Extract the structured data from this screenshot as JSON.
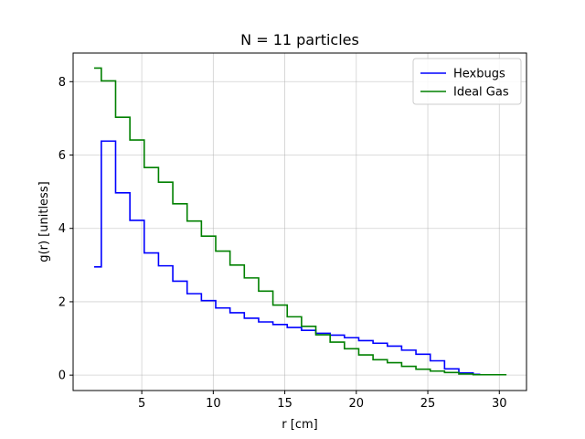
{
  "chart_data": {
    "type": "line",
    "title": "N = 11 particles",
    "xlabel": "r [cm]",
    "ylabel": "g(r) [unitless]",
    "xlim": [
      0.2,
      31.9
    ],
    "ylim": [
      -0.42,
      8.78
    ],
    "xticks": [
      5,
      10,
      15,
      20,
      25,
      30
    ],
    "yticks": [
      0,
      2,
      4,
      6,
      8
    ],
    "grid": true,
    "legend_position": "top-right",
    "drawstyle": "steps-mid",
    "series": [
      {
        "name": "Hexbugs",
        "color": "#0000ff",
        "x": [
          1.67,
          2.67,
          3.67,
          4.67,
          5.67,
          6.67,
          7.67,
          8.67,
          9.67,
          10.67,
          11.67,
          12.67,
          13.67,
          14.67,
          15.67,
          16.67,
          17.67,
          18.67,
          19.67,
          20.67,
          21.67,
          22.67,
          23.67,
          24.67,
          25.67,
          26.67,
          27.67,
          28.67
        ],
        "values": [
          2.95,
          6.38,
          4.97,
          4.22,
          3.33,
          2.98,
          2.56,
          2.22,
          2.03,
          1.83,
          1.7,
          1.55,
          1.45,
          1.38,
          1.3,
          1.22,
          1.14,
          1.09,
          1.02,
          0.94,
          0.87,
          0.79,
          0.68,
          0.57,
          0.39,
          0.17,
          0.06,
          0.02
        ]
      },
      {
        "name": "Ideal Gas",
        "color": "#008000",
        "x": [
          1.67,
          2.67,
          3.67,
          4.67,
          5.67,
          6.67,
          7.67,
          8.67,
          9.67,
          10.67,
          11.67,
          12.67,
          13.67,
          14.67,
          15.67,
          16.67,
          17.67,
          18.67,
          19.67,
          20.67,
          21.67,
          22.67,
          23.67,
          24.67,
          25.67,
          26.67,
          27.67,
          28.67,
          29.67,
          30.5
        ],
        "values": [
          8.37,
          8.02,
          7.03,
          6.41,
          5.66,
          5.26,
          4.67,
          4.2,
          3.79,
          3.38,
          3.0,
          2.65,
          2.29,
          1.91,
          1.59,
          1.33,
          1.1,
          0.9,
          0.72,
          0.55,
          0.42,
          0.34,
          0.24,
          0.16,
          0.11,
          0.07,
          0.03,
          0.01,
          0.01,
          0.01
        ]
      }
    ]
  }
}
